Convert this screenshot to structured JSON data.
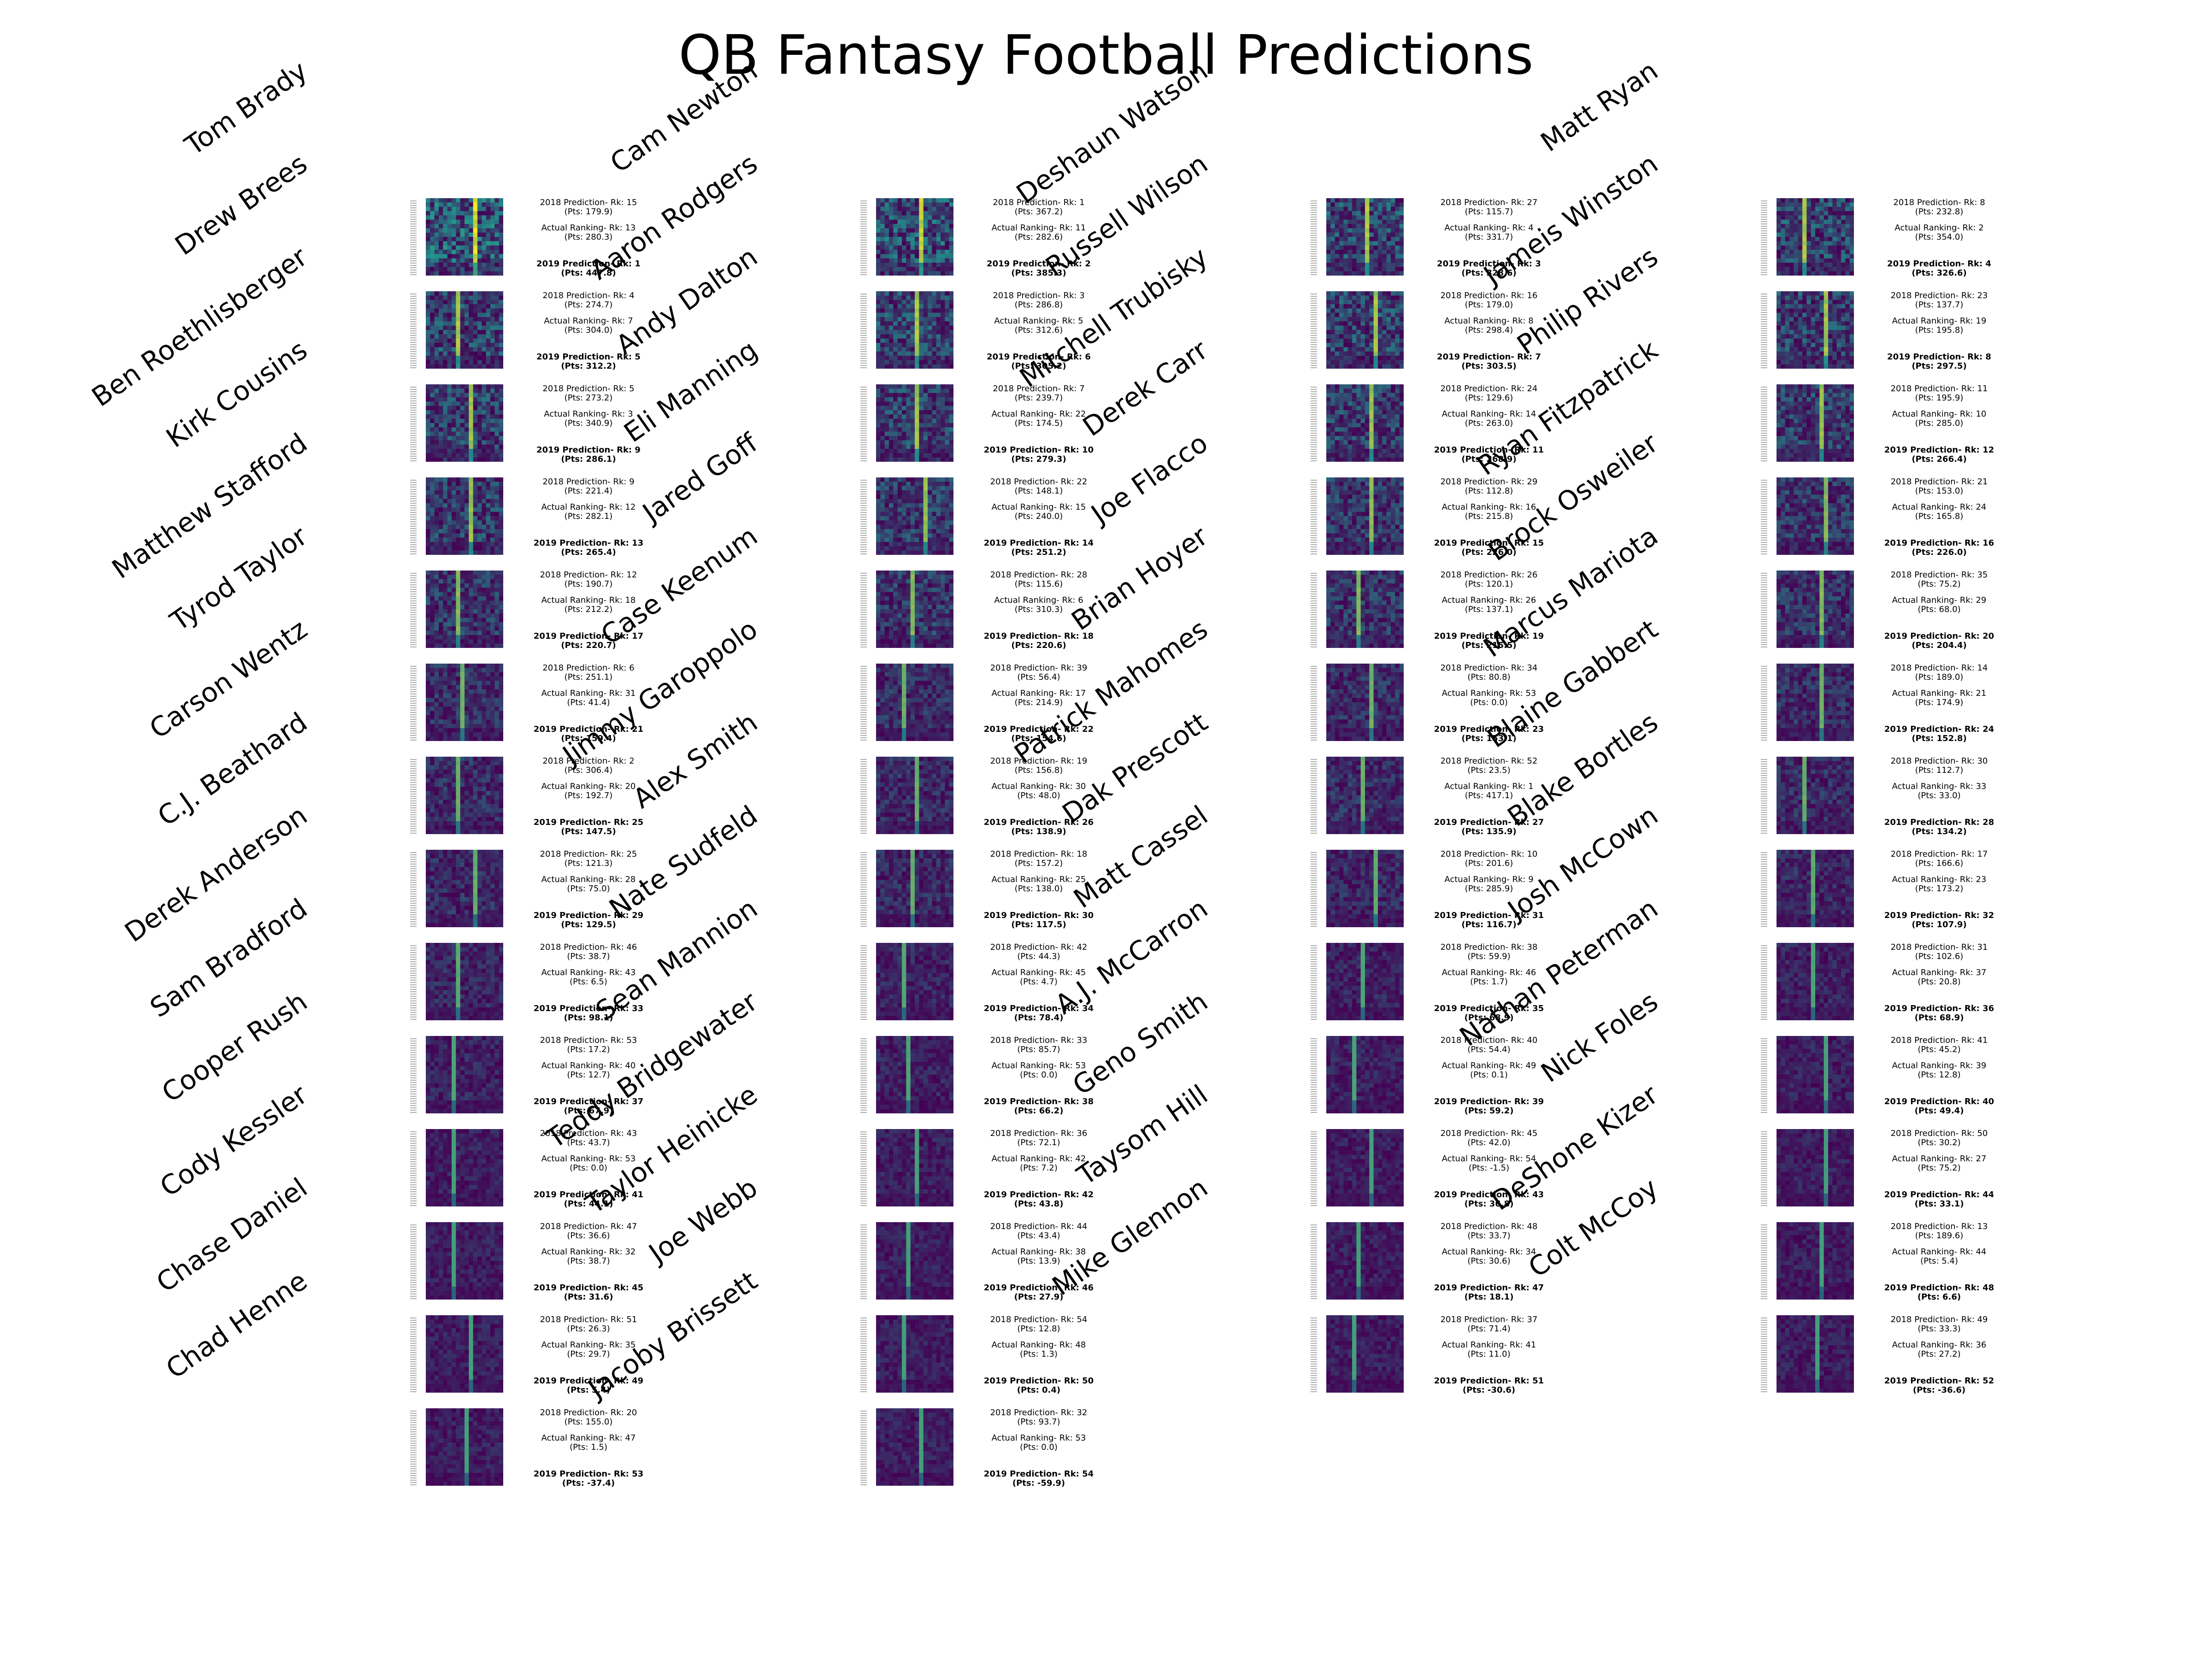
{
  "title": "QB Fantasy Football Predictions",
  "labels": {
    "pred2018": "2018 Prediction- Rk: ",
    "actual": "Actual Ranking-  Rk: ",
    "pred2019": "2019 Prediction- Rk: ",
    "pts_open": "(Pts: ",
    "pts_close": ")"
  },
  "colors": {
    "background": "#ffffff",
    "heatmap_low": "#440154",
    "heatmap_mid": "#21918c",
    "heatmap_high": "#fde725"
  },
  "chart_data": {
    "type": "heatmap",
    "title": "QB Fantasy Football Predictions",
    "columns": [
      [
        {
          "name": "Tom Brady",
          "pred2018_rk": 15,
          "pred2018_pts": "179.9",
          "actual_rk": 13,
          "actual_pts": "280.3",
          "pred2019_rk": 1,
          "pred2019_pts": "447.8"
        },
        {
          "name": "Drew Brees",
          "pred2018_rk": 4,
          "pred2018_pts": "274.7",
          "actual_rk": 7,
          "actual_pts": "304.0",
          "pred2019_rk": 5,
          "pred2019_pts": "312.2"
        },
        {
          "name": "Ben Roethlisberger",
          "pred2018_rk": 5,
          "pred2018_pts": "273.2",
          "actual_rk": 3,
          "actual_pts": "340.9",
          "pred2019_rk": 9,
          "pred2019_pts": "286.1"
        },
        {
          "name": "Kirk Cousins",
          "pred2018_rk": 9,
          "pred2018_pts": "221.4",
          "actual_rk": 12,
          "actual_pts": "282.1",
          "pred2019_rk": 13,
          "pred2019_pts": "265.4"
        },
        {
          "name": "Matthew Stafford",
          "pred2018_rk": 12,
          "pred2018_pts": "190.7",
          "actual_rk": 18,
          "actual_pts": "212.2",
          "pred2019_rk": 17,
          "pred2019_pts": "220.7"
        },
        {
          "name": "Tyrod Taylor",
          "pred2018_rk": 6,
          "pred2018_pts": "251.1",
          "actual_rk": 31,
          "actual_pts": "41.4",
          "pred2019_rk": 21,
          "pred2019_pts": "159.4"
        },
        {
          "name": "Carson Wentz",
          "pred2018_rk": 2,
          "pred2018_pts": "306.4",
          "actual_rk": 20,
          "actual_pts": "192.7",
          "pred2019_rk": 25,
          "pred2019_pts": "147.5"
        },
        {
          "name": "C.J. Beathard",
          "pred2018_rk": 25,
          "pred2018_pts": "121.3",
          "actual_rk": 28,
          "actual_pts": "75.0",
          "pred2019_rk": 29,
          "pred2019_pts": "129.5"
        },
        {
          "name": "Derek Anderson",
          "pred2018_rk": 46,
          "pred2018_pts": "38.7",
          "actual_rk": 43,
          "actual_pts": "6.5",
          "pred2019_rk": 33,
          "pred2019_pts": "98.1"
        },
        {
          "name": "Sam Bradford",
          "pred2018_rk": 53,
          "pred2018_pts": "17.2",
          "actual_rk": 40,
          "actual_pts": "12.7",
          "pred2019_rk": 37,
          "pred2019_pts": "67.9"
        },
        {
          "name": "Cooper Rush",
          "pred2018_rk": 43,
          "pred2018_pts": "43.7",
          "actual_rk": 53,
          "actual_pts": "0.0",
          "pred2019_rk": 41,
          "pred2019_pts": "44.1"
        },
        {
          "name": "Cody Kessler",
          "pred2018_rk": 47,
          "pred2018_pts": "36.6",
          "actual_rk": 32,
          "actual_pts": "38.7",
          "pred2019_rk": 45,
          "pred2019_pts": "31.6"
        },
        {
          "name": "Chase Daniel",
          "pred2018_rk": 51,
          "pred2018_pts": "26.3",
          "actual_rk": 35,
          "actual_pts": "29.7",
          "pred2019_rk": 49,
          "pred2019_pts": "5.4"
        },
        {
          "name": "Chad Henne",
          "pred2018_rk": 20,
          "pred2018_pts": "155.0",
          "actual_rk": 47,
          "actual_pts": "1.5",
          "pred2019_rk": 53,
          "pred2019_pts": "-37.4"
        }
      ],
      [
        {
          "name": "Cam Newton",
          "pred2018_rk": 1,
          "pred2018_pts": "367.2",
          "actual_rk": 11,
          "actual_pts": "282.6",
          "pred2019_rk": 2,
          "pred2019_pts": "385.3"
        },
        {
          "name": "Aaron Rodgers",
          "pred2018_rk": 3,
          "pred2018_pts": "286.8",
          "actual_rk": 5,
          "actual_pts": "312.6",
          "pred2019_rk": 6,
          "pred2019_pts": "305.2"
        },
        {
          "name": "Andy Dalton",
          "pred2018_rk": 7,
          "pred2018_pts": "239.7",
          "actual_rk": 22,
          "actual_pts": "174.5",
          "pred2019_rk": 10,
          "pred2019_pts": "279.3"
        },
        {
          "name": "Eli Manning",
          "pred2018_rk": 22,
          "pred2018_pts": "148.1",
          "actual_rk": 15,
          "actual_pts": "240.0",
          "pred2019_rk": 14,
          "pred2019_pts": "251.2"
        },
        {
          "name": "Jared Goff",
          "pred2018_rk": 28,
          "pred2018_pts": "115.6",
          "actual_rk": 6,
          "actual_pts": "310.3",
          "pred2019_rk": 18,
          "pred2019_pts": "220.6"
        },
        {
          "name": "Case Keenum",
          "pred2018_rk": 39,
          "pred2018_pts": "56.4",
          "actual_rk": 17,
          "actual_pts": "214.9",
          "pred2019_rk": 22,
          "pred2019_pts": "154.6"
        },
        {
          "name": "Jimmy Garoppolo",
          "pred2018_rk": 19,
          "pred2018_pts": "156.8",
          "actual_rk": 30,
          "actual_pts": "48.0",
          "pred2019_rk": 26,
          "pred2019_pts": "138.9"
        },
        {
          "name": "Alex Smith",
          "pred2018_rk": 18,
          "pred2018_pts": "157.2",
          "actual_rk": 25,
          "actual_pts": "138.0",
          "pred2019_rk": 30,
          "pred2019_pts": "117.5"
        },
        {
          "name": "Nate Sudfeld",
          "pred2018_rk": 42,
          "pred2018_pts": "44.3",
          "actual_rk": 45,
          "actual_pts": "4.7",
          "pred2019_rk": 34,
          "pred2019_pts": "78.4"
        },
        {
          "name": "Sean Mannion",
          "pred2018_rk": 33,
          "pred2018_pts": "85.7",
          "actual_rk": 53,
          "actual_pts": "0.0",
          "pred2019_rk": 38,
          "pred2019_pts": "66.2"
        },
        {
          "name": "Teddy Bridgewater",
          "pred2018_rk": 36,
          "pred2018_pts": "72.1",
          "actual_rk": 42,
          "actual_pts": "7.2",
          "pred2019_rk": 42,
          "pred2019_pts": "43.8"
        },
        {
          "name": "Taylor Heinicke",
          "pred2018_rk": 44,
          "pred2018_pts": "43.4",
          "actual_rk": 38,
          "actual_pts": "13.9",
          "pred2019_rk": 46,
          "pred2019_pts": "27.9"
        },
        {
          "name": "Joe Webb",
          "pred2018_rk": 54,
          "pred2018_pts": "12.8",
          "actual_rk": 48,
          "actual_pts": "1.3",
          "pred2019_rk": 50,
          "pred2019_pts": "0.4"
        },
        {
          "name": "Jacoby Brissett",
          "pred2018_rk": 32,
          "pred2018_pts": "93.7",
          "actual_rk": 53,
          "actual_pts": "0.0",
          "pred2019_rk": 54,
          "pred2019_pts": "-59.9"
        }
      ],
      [
        {
          "name": "Deshaun Watson",
          "pred2018_rk": 27,
          "pred2018_pts": "115.7",
          "actual_rk": 4,
          "actual_pts": "331.7",
          "pred2019_rk": 3,
          "pred2019_pts": "328.6"
        },
        {
          "name": "Russell Wilson",
          "pred2018_rk": 16,
          "pred2018_pts": "179.0",
          "actual_rk": 8,
          "actual_pts": "298.4",
          "pred2019_rk": 7,
          "pred2019_pts": "303.5"
        },
        {
          "name": "Mitchell Trubisky",
          "pred2018_rk": 24,
          "pred2018_pts": "129.6",
          "actual_rk": 14,
          "actual_pts": "263.0",
          "pred2019_rk": 11,
          "pred2019_pts": "268.9"
        },
        {
          "name": "Derek Carr",
          "pred2018_rk": 29,
          "pred2018_pts": "112.8",
          "actual_rk": 16,
          "actual_pts": "215.8",
          "pred2019_rk": 15,
          "pred2019_pts": "226.0"
        },
        {
          "name": "Joe Flacco",
          "pred2018_rk": 26,
          "pred2018_pts": "120.1",
          "actual_rk": 26,
          "actual_pts": "137.1",
          "pred2019_rk": 19,
          "pred2019_pts": "215.5"
        },
        {
          "name": "Brian Hoyer",
          "pred2018_rk": 34,
          "pred2018_pts": "80.8",
          "actual_rk": 53,
          "actual_pts": "0.0",
          "pred2019_rk": 23,
          "pred2019_pts": "153.1"
        },
        {
          "name": "Patrick Mahomes",
          "pred2018_rk": 52,
          "pred2018_pts": "23.5",
          "actual_rk": 1,
          "actual_pts": "417.1",
          "pred2019_rk": 27,
          "pred2019_pts": "135.9"
        },
        {
          "name": "Dak Prescott",
          "pred2018_rk": 10,
          "pred2018_pts": "201.6",
          "actual_rk": 9,
          "actual_pts": "285.9",
          "pred2019_rk": 31,
          "pred2019_pts": "116.7"
        },
        {
          "name": "Matt Cassel",
          "pred2018_rk": 38,
          "pred2018_pts": "59.9",
          "actual_rk": 46,
          "actual_pts": "1.7",
          "pred2019_rk": 35,
          "pred2019_pts": "68.9"
        },
        {
          "name": "A.J. McCarron",
          "pred2018_rk": 40,
          "pred2018_pts": "54.4",
          "actual_rk": 49,
          "actual_pts": "0.1",
          "pred2019_rk": 39,
          "pred2019_pts": "59.2"
        },
        {
          "name": "Geno Smith",
          "pred2018_rk": 45,
          "pred2018_pts": "42.0",
          "actual_rk": 54,
          "actual_pts": "-1.5",
          "pred2019_rk": 43,
          "pred2019_pts": "36.8"
        },
        {
          "name": "Taysom Hill",
          "pred2018_rk": 48,
          "pred2018_pts": "33.7",
          "actual_rk": 34,
          "actual_pts": "30.6",
          "pred2019_rk": 47,
          "pred2019_pts": "18.1"
        },
        {
          "name": "Mike Glennon",
          "pred2018_rk": 37,
          "pred2018_pts": "71.4",
          "actual_rk": 41,
          "actual_pts": "11.0",
          "pred2019_rk": 51,
          "pred2019_pts": "-30.6"
        }
      ],
      [
        {
          "name": "Matt Ryan",
          "pred2018_rk": 8,
          "pred2018_pts": "232.8",
          "actual_rk": 2,
          "actual_pts": "354.0",
          "pred2019_rk": 4,
          "pred2019_pts": "326.6"
        },
        {
          "name": "Jameis Winston",
          "pred2018_rk": 23,
          "pred2018_pts": "137.7",
          "actual_rk": 19,
          "actual_pts": "195.8",
          "pred2019_rk": 8,
          "pred2019_pts": "297.5"
        },
        {
          "name": "Philip Rivers",
          "pred2018_rk": 11,
          "pred2018_pts": "195.9",
          "actual_rk": 10,
          "actual_pts": "285.0",
          "pred2019_rk": 12,
          "pred2019_pts": "266.4"
        },
        {
          "name": "Ryan Fitzpatrick",
          "pred2018_rk": 21,
          "pred2018_pts": "153.0",
          "actual_rk": 24,
          "actual_pts": "165.8",
          "pred2019_rk": 16,
          "pred2019_pts": "226.0"
        },
        {
          "name": "Brock Osweiler",
          "pred2018_rk": 35,
          "pred2018_pts": "75.2",
          "actual_rk": 29,
          "actual_pts": "68.0",
          "pred2019_rk": 20,
          "pred2019_pts": "204.4"
        },
        {
          "name": "Marcus Mariota",
          "pred2018_rk": 14,
          "pred2018_pts": "189.0",
          "actual_rk": 21,
          "actual_pts": "174.9",
          "pred2019_rk": 24,
          "pred2019_pts": "152.8"
        },
        {
          "name": "Blaine Gabbert",
          "pred2018_rk": 30,
          "pred2018_pts": "112.7",
          "actual_rk": 33,
          "actual_pts": "33.0",
          "pred2019_rk": 28,
          "pred2019_pts": "134.2"
        },
        {
          "name": "Blake Bortles",
          "pred2018_rk": 17,
          "pred2018_pts": "166.6",
          "actual_rk": 23,
          "actual_pts": "173.2",
          "pred2019_rk": 32,
          "pred2019_pts": "107.9"
        },
        {
          "name": "Josh McCown",
          "pred2018_rk": 31,
          "pred2018_pts": "102.6",
          "actual_rk": 37,
          "actual_pts": "20.8",
          "pred2019_rk": 36,
          "pred2019_pts": "68.9"
        },
        {
          "name": "Nathan Peterman",
          "pred2018_rk": 41,
          "pred2018_pts": "45.2",
          "actual_rk": 39,
          "actual_pts": "12.8",
          "pred2019_rk": 40,
          "pred2019_pts": "49.4"
        },
        {
          "name": "Nick Foles",
          "pred2018_rk": 50,
          "pred2018_pts": "30.2",
          "actual_rk": 27,
          "actual_pts": "75.2",
          "pred2019_rk": 44,
          "pred2019_pts": "33.1"
        },
        {
          "name": "DeShone Kizer",
          "pred2018_rk": 13,
          "pred2018_pts": "189.6",
          "actual_rk": 44,
          "actual_pts": "5.4",
          "pred2019_rk": 48,
          "pred2019_pts": "6.6"
        },
        {
          "name": "Colt McCoy",
          "pred2018_rk": 49,
          "pred2018_pts": "33.3",
          "actual_rk": 36,
          "actual_pts": "27.2",
          "pred2019_rk": 52,
          "pred2019_pts": "-36.6"
        }
      ]
    ]
  }
}
